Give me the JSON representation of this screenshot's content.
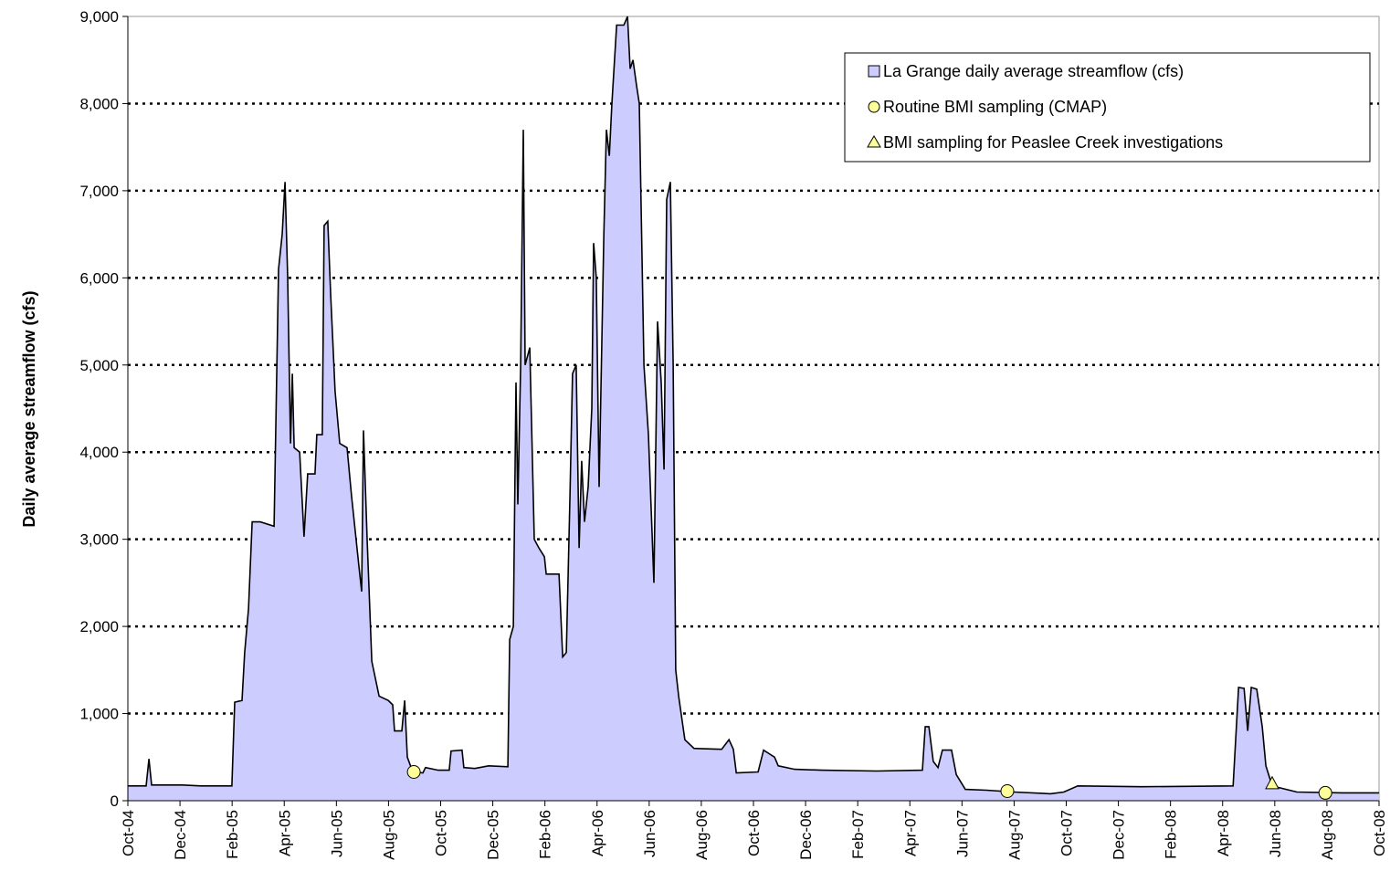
{
  "chart_data": {
    "type": "area",
    "y_label": "Daily average streamflow (cfs)",
    "xlim": [
      0,
      48
    ],
    "xticks": [
      {
        "value": 0,
        "label": "Oct-04"
      },
      {
        "value": 2,
        "label": "Dec-04"
      },
      {
        "value": 4,
        "label": "Feb-05"
      },
      {
        "value": 6,
        "label": "Apr-05"
      },
      {
        "value": 8,
        "label": "Jun-05"
      },
      {
        "value": 10,
        "label": "Aug-05"
      },
      {
        "value": 12,
        "label": "Oct-05"
      },
      {
        "value": 14,
        "label": "Dec-05"
      },
      {
        "value": 16,
        "label": "Feb-06"
      },
      {
        "value": 18,
        "label": "Apr-06"
      },
      {
        "value": 20,
        "label": "Jun-06"
      },
      {
        "value": 22,
        "label": "Aug-06"
      },
      {
        "value": 24,
        "label": "Oct-06"
      },
      {
        "value": 26,
        "label": "Dec-06"
      },
      {
        "value": 28,
        "label": "Feb-07"
      },
      {
        "value": 30,
        "label": "Apr-07"
      },
      {
        "value": 32,
        "label": "Jun-07"
      },
      {
        "value": 34,
        "label": "Aug-07"
      },
      {
        "value": 36,
        "label": "Oct-07"
      },
      {
        "value": 38,
        "label": "Dec-07"
      },
      {
        "value": 40,
        "label": "Feb-08"
      },
      {
        "value": 42,
        "label": "Apr-08"
      },
      {
        "value": 44,
        "label": "Jun-08"
      },
      {
        "value": 46,
        "label": "Aug-08"
      },
      {
        "value": 48,
        "label": "Oct-08"
      }
    ],
    "ylim": [
      0,
      9000
    ],
    "yticks": [
      0,
      {
        "value": 1000,
        "label": "1,000"
      },
      {
        "value": 2000,
        "label": "2,000"
      },
      {
        "value": 3000,
        "label": "3,000"
      },
      {
        "value": 4000,
        "label": "4,000"
      },
      {
        "value": 5000,
        "label": "5,000"
      },
      {
        "value": 6000,
        "label": "6,000"
      },
      {
        "value": 7000,
        "label": "7,000"
      },
      {
        "value": 8000,
        "label": "8,000"
      },
      {
        "value": 9000,
        "label": "9,000"
      }
    ],
    "grid": true,
    "legend": "upper right",
    "series": [
      {
        "name": "La Grange daily average streamflow (cfs)",
        "style": "area",
        "color": "#ccccff",
        "x": [
          0,
          0.7,
          0.81,
          0.91,
          2.1,
          2.8,
          3.99,
          4.1,
          4.38,
          4.48,
          4.63,
          4.77,
          5.08,
          5.61,
          5.78,
          5.92,
          6.03,
          6.13,
          6.24,
          6.31,
          6.38,
          6.59,
          6.76,
          6.9,
          7.18,
          7.25,
          7.46,
          7.53,
          7.67,
          7.78,
          7.95,
          8.13,
          8.41,
          8.58,
          8.86,
          8.97,
          9.04,
          9.18,
          9.36,
          9.64,
          9.99,
          10.16,
          10.23,
          10.51,
          10.62,
          10.72,
          10.93,
          11.32,
          11.42,
          11.91,
          12.33,
          12.4,
          12.82,
          12.89,
          13.31,
          13.84,
          14.58,
          14.65,
          14.79,
          14.89,
          14.96,
          15.07,
          15.17,
          15.24,
          15.42,
          15.59,
          15.77,
          15.98,
          16.05,
          16.54,
          16.68,
          16.82,
          16.96,
          17.06,
          17.2,
          17.31,
          17.41,
          17.52,
          17.66,
          17.8,
          17.87,
          17.97,
          18.08,
          18.26,
          18.36,
          18.47,
          18.57,
          18.75,
          19.03,
          19.17,
          19.27,
          19.38,
          19.52,
          19.62,
          19.8,
          19.97,
          20.18,
          20.32,
          20.46,
          20.57,
          20.67,
          20.81,
          20.92,
          21.02,
          21.13,
          21.37,
          21.72,
          22.78,
          23.06,
          23.23,
          23.34,
          24.18,
          24.39,
          24.81,
          24.95,
          25.58,
          26.63,
          28.73,
          30.48,
          30.59,
          30.73,
          30.9,
          31.08,
          31.25,
          31.6,
          31.78,
          32.13,
          32.94,
          33.99,
          35.39,
          35.91,
          36.44,
          38.89,
          42.4,
          42.61,
          42.82,
          42.96,
          43.1,
          43.31,
          43.52,
          43.66,
          43.9,
          44.85,
          46.6,
          48
        ],
        "values": [
          170,
          170,
          480,
          180,
          180,
          170,
          170,
          1130,
          1150,
          1700,
          2200,
          3200,
          3200,
          3150,
          6100,
          6500,
          7100,
          6000,
          4100,
          4900,
          4050,
          4000,
          3030,
          3750,
          3750,
          4200,
          4200,
          6600,
          6650,
          5800,
          4700,
          4100,
          4050,
          3500,
          2700,
          2400,
          4250,
          3000,
          1600,
          1200,
          1150,
          1100,
          800,
          800,
          1150,
          500,
          330,
          320,
          380,
          350,
          350,
          570,
          580,
          380,
          370,
          400,
          390,
          1850,
          2000,
          4800,
          3400,
          5000,
          7700,
          5000,
          5200,
          3000,
          2900,
          2800,
          2600,
          2600,
          1650,
          1700,
          3500,
          4900,
          5000,
          2900,
          3900,
          3200,
          3600,
          4500,
          6400,
          6000,
          3600,
          6500,
          7700,
          7400,
          8000,
          8900,
          8900,
          9000,
          8400,
          8500,
          8200,
          8000,
          5000,
          4200,
          2500,
          5500,
          4800,
          3800,
          6900,
          7100,
          5000,
          1500,
          1200,
          700,
          600,
          590,
          700,
          590,
          320,
          330,
          580,
          500,
          400,
          360,
          350,
          340,
          350,
          850,
          850,
          450,
          380,
          580,
          580,
          300,
          130,
          120,
          100,
          80,
          100,
          170,
          160,
          170,
          1300,
          1290,
          800,
          1300,
          1280,
          850,
          400,
          170,
          100,
          90,
          90
        ]
      },
      {
        "name": "Routine BMI sampling (CMAP)",
        "style": "points",
        "marker": "circle",
        "color": "#ffff99",
        "x": [
          10.97,
          33.74,
          45.94
        ],
        "values": [
          330,
          110,
          90
        ]
      },
      {
        "name": "BMI sampling for Peaslee Creek investigations",
        "style": "points",
        "marker": "triangle",
        "color": "#ffff99",
        "x": [
          43.9
        ],
        "values": [
          190
        ]
      }
    ]
  }
}
